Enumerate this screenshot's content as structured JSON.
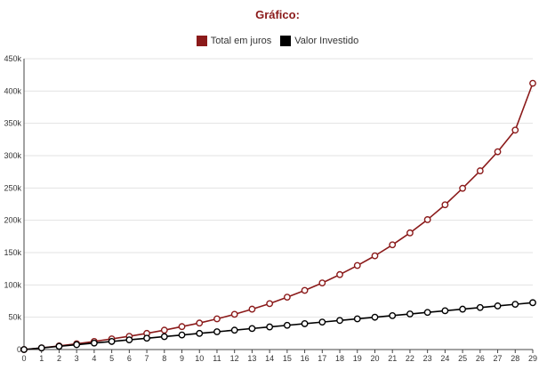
{
  "chart_data": {
    "type": "line",
    "title": "Gráfico:",
    "xlabel": "",
    "ylabel": "",
    "categories": [
      0,
      1,
      2,
      3,
      4,
      5,
      6,
      7,
      8,
      9,
      10,
      11,
      12,
      13,
      14,
      15,
      16,
      17,
      18,
      19,
      20,
      21,
      22,
      23,
      24,
      25,
      26,
      27,
      28,
      29
    ],
    "ylim": [
      0,
      450000
    ],
    "yticks": [
      0,
      50000,
      100000,
      150000,
      200000,
      250000,
      300000,
      350000,
      400000,
      450000
    ],
    "ytick_labels": [
      "0",
      "50k",
      "100k",
      "150k",
      "200k",
      "250k",
      "300k",
      "350k",
      "400k",
      "450k"
    ],
    "grid": true,
    "legend_position": "top-center",
    "series": [
      {
        "name": "Total em juros",
        "color": "#8b1a1a",
        "values": [
          0,
          2600,
          5600,
          8900,
          12500,
          16500,
          20500,
          25000,
          30000,
          35500,
          41000,
          47500,
          54500,
          62500,
          71000,
          81000,
          91500,
          103000,
          116000,
          130000,
          145000,
          162000,
          180500,
          201000,
          224000,
          249500,
          276500,
          306000,
          339500,
          412000
        ]
      },
      {
        "name": "Valor Investido",
        "color": "#000000",
        "values": [
          0,
          2500,
          5000,
          7500,
          10000,
          12500,
          15000,
          17500,
          20000,
          22500,
          25000,
          27500,
          30000,
          32500,
          35000,
          37500,
          40000,
          42500,
          45000,
          47500,
          50000,
          52500,
          55000,
          57500,
          60000,
          62500,
          65000,
          67500,
          70000,
          72500
        ]
      }
    ]
  }
}
